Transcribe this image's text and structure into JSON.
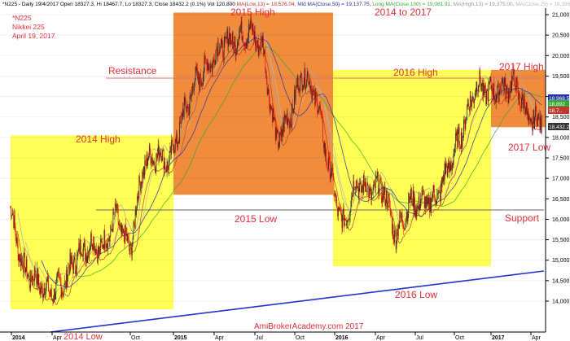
{
  "header": {
    "segments": [
      {
        "text": "*N225 - Daily 19/4/2017 Open 18327.3, Hi 18467.7, Lo 18327.3, Close 18432.2 (0.1%) Vol 120,800 ",
        "color": "#000000"
      },
      {
        "text": "MA(Low,13) = 18,526.04, ",
        "color": "#c0392b"
      },
      {
        "text": "Mid MA(Close,50) = 19,137.75, ",
        "color": "#2233aa"
      },
      {
        "text": "Long MA(Close,100) = 19,081.91, ",
        "color": "#33aa33"
      },
      {
        "text": "MA(High,13) = 19,375.00, ",
        "color": "#999999"
      },
      {
        "text": "MA(Close,25) = 18,195",
        "color": "#bbbbbb"
      }
    ]
  },
  "info": {
    "line1": "*N225",
    "line2": "Nikkei 225",
    "line3": "April 19, 2017"
  },
  "annotations": {
    "h2015": "2015 High",
    "h2014to2017": "2014 to 2017",
    "resistance": "Resistance",
    "h2016": "2016 High",
    "h2017": "2017 High",
    "h2014": "2014 High",
    "l2017": "2017 Low",
    "l2015": "2015 Low",
    "support": "Support",
    "l2016": "2016 Low",
    "l2014": "2014 Low",
    "watermark": "AmiBrokerAcademy.com  2017"
  },
  "price_tags": [
    {
      "value": "18,968.5",
      "color": "#2233aa"
    },
    {
      "value": "18,892",
      "color": "#33aa33"
    },
    {
      "value": "18,7..",
      "color": "#c0392b"
    },
    {
      "value": "18,432.2",
      "color": "#333333"
    }
  ],
  "colors": {
    "zone_high": "#f08c3c",
    "zone_low": "#ffff55",
    "resistance": "#e07070",
    "support": "#666666",
    "trend": "#2233cc",
    "up": "#222222",
    "down": "#dd1111"
  },
  "chart_data": {
    "type": "candlestick",
    "title": "*N225 - Daily",
    "ylim": [
      13700,
      21600
    ],
    "yticks": [
      "21,000",
      "20,500",
      "20,000",
      "19,500",
      "19,000",
      "18,500",
      "18,000",
      "17,500",
      "17,000",
      "16,500",
      "16,000",
      "15,500",
      "15,000",
      "14,500",
      "14,000"
    ],
    "xticks": [
      "2014",
      "Apr",
      "2014 Low",
      "Oct",
      "2015",
      "Apr",
      "Jul",
      "Oct",
      "2016",
      "Apr",
      "Jul",
      "Oct",
      "2017",
      "Apr"
    ],
    "resistance_level": 19700,
    "support_level": 16600,
    "zones": [
      {
        "label": "2014 High",
        "from": "2014-01",
        "to": "2015-01",
        "top": 18050,
        "bottom": 13800,
        "kind": "low"
      },
      {
        "label": "2015 High",
        "from": "2015-01",
        "to": "2016-01",
        "top": 21050,
        "bottom": 16600,
        "kind": "high"
      },
      {
        "label": "2016 High",
        "from": "2016-01",
        "to": "2016-12",
        "top": 19650,
        "bottom": 14850,
        "kind": "low"
      },
      {
        "label": "2017 High",
        "from": "2017-01",
        "to": "2017-04",
        "top": 19650,
        "bottom": 18250,
        "kind": "high"
      }
    ],
    "trendline": [
      {
        "x": "2014-04",
        "y": 13750
      },
      {
        "x": "2017-04",
        "y": 15200
      }
    ],
    "price_path": [
      [
        "2014-01",
        16300
      ],
      [
        "2014-02",
        14800
      ],
      [
        "2014-03",
        14500
      ],
      [
        "2014-04",
        14200
      ],
      [
        "2014-05",
        14400
      ],
      [
        "2014-06",
        15100
      ],
      [
        "2014-07",
        15400
      ],
      [
        "2014-08",
        15300
      ],
      [
        "2014-09",
        16100
      ],
      [
        "2014-10",
        15200
      ],
      [
        "2014-11",
        17300
      ],
      [
        "2014-12",
        17600
      ],
      [
        "2015-01",
        17400
      ],
      [
        "2015-02",
        18500
      ],
      [
        "2015-03",
        19400
      ],
      [
        "2015-04",
        19800
      ],
      [
        "2015-05",
        20300
      ],
      [
        "2015-06",
        20400
      ],
      [
        "2015-07",
        20600
      ],
      [
        "2015-08",
        20200
      ],
      [
        "2015-09",
        17900
      ],
      [
        "2015-10",
        18500
      ],
      [
        "2015-11",
        19600
      ],
      [
        "2015-12",
        19000
      ],
      [
        "2016-01",
        17200
      ],
      [
        "2016-02",
        15800
      ],
      [
        "2016-03",
        16900
      ],
      [
        "2016-04",
        16700
      ],
      [
        "2016-05",
        16800
      ],
      [
        "2016-06",
        15600
      ],
      [
        "2016-07",
        16400
      ],
      [
        "2016-08",
        16400
      ],
      [
        "2016-09",
        16500
      ],
      [
        "2016-10",
        17300
      ],
      [
        "2016-11",
        18200
      ],
      [
        "2016-12",
        19300
      ],
      [
        "2017-01",
        19100
      ],
      [
        "2017-02",
        19200
      ],
      [
        "2017-03",
        19300
      ],
      [
        "2017-04",
        18400
      ]
    ]
  }
}
